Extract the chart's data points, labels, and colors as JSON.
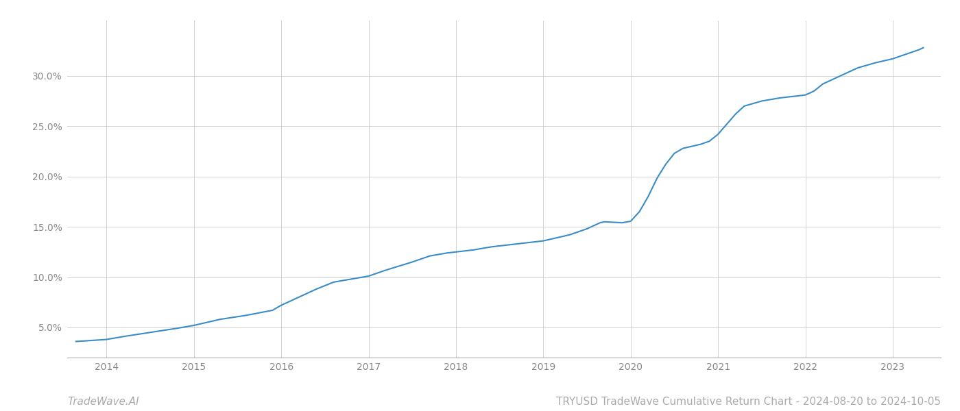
{
  "title": "TRYUSD TradeWave Cumulative Return Chart - 2024-08-20 to 2024-10-05",
  "watermark": "TradeWave.AI",
  "line_color": "#3a8cc8",
  "background_color": "#ffffff",
  "grid_color": "#cccccc",
  "x_years": [
    2014,
    2015,
    2016,
    2017,
    2018,
    2019,
    2020,
    2021,
    2022,
    2023
  ],
  "x_data": [
    2013.65,
    2014.0,
    2014.2,
    2014.5,
    2014.8,
    2015.0,
    2015.3,
    2015.6,
    2015.9,
    2016.0,
    2016.2,
    2016.4,
    2016.6,
    2016.9,
    2017.0,
    2017.2,
    2017.5,
    2017.7,
    2017.9,
    2018.0,
    2018.2,
    2018.4,
    2018.6,
    2018.8,
    2018.9,
    2019.0,
    2019.1,
    2019.2,
    2019.3,
    2019.4,
    2019.5,
    2019.6,
    2019.65,
    2019.7,
    2019.8,
    2019.9,
    2020.0,
    2020.1,
    2020.2,
    2020.3,
    2020.4,
    2020.5,
    2020.6,
    2020.8,
    2020.9,
    2021.0,
    2021.1,
    2021.2,
    2021.3,
    2021.5,
    2021.7,
    2021.9,
    2022.0,
    2022.1,
    2022.2,
    2022.4,
    2022.6,
    2022.8,
    2022.9,
    2023.0,
    2023.1,
    2023.2,
    2023.3,
    2023.35
  ],
  "y_data": [
    3.6,
    3.8,
    4.1,
    4.5,
    4.9,
    5.2,
    5.8,
    6.2,
    6.7,
    7.2,
    8.0,
    8.8,
    9.5,
    9.95,
    10.1,
    10.7,
    11.5,
    12.1,
    12.4,
    12.5,
    12.7,
    13.0,
    13.2,
    13.4,
    13.5,
    13.6,
    13.8,
    14.0,
    14.2,
    14.5,
    14.8,
    15.2,
    15.4,
    15.5,
    15.45,
    15.4,
    15.55,
    16.5,
    18.0,
    19.8,
    21.2,
    22.3,
    22.8,
    23.2,
    23.5,
    24.2,
    25.2,
    26.2,
    27.0,
    27.5,
    27.8,
    28.0,
    28.1,
    28.5,
    29.2,
    30.0,
    30.8,
    31.3,
    31.5,
    31.7,
    32.0,
    32.3,
    32.6,
    32.8
  ],
  "ylim": [
    2.0,
    35.5
  ],
  "yticks": [
    5.0,
    10.0,
    15.0,
    20.0,
    25.0,
    30.0
  ],
  "xlim": [
    2013.55,
    2023.55
  ],
  "line_width": 1.5,
  "title_fontsize": 11,
  "tick_fontsize": 10,
  "watermark_fontsize": 11
}
